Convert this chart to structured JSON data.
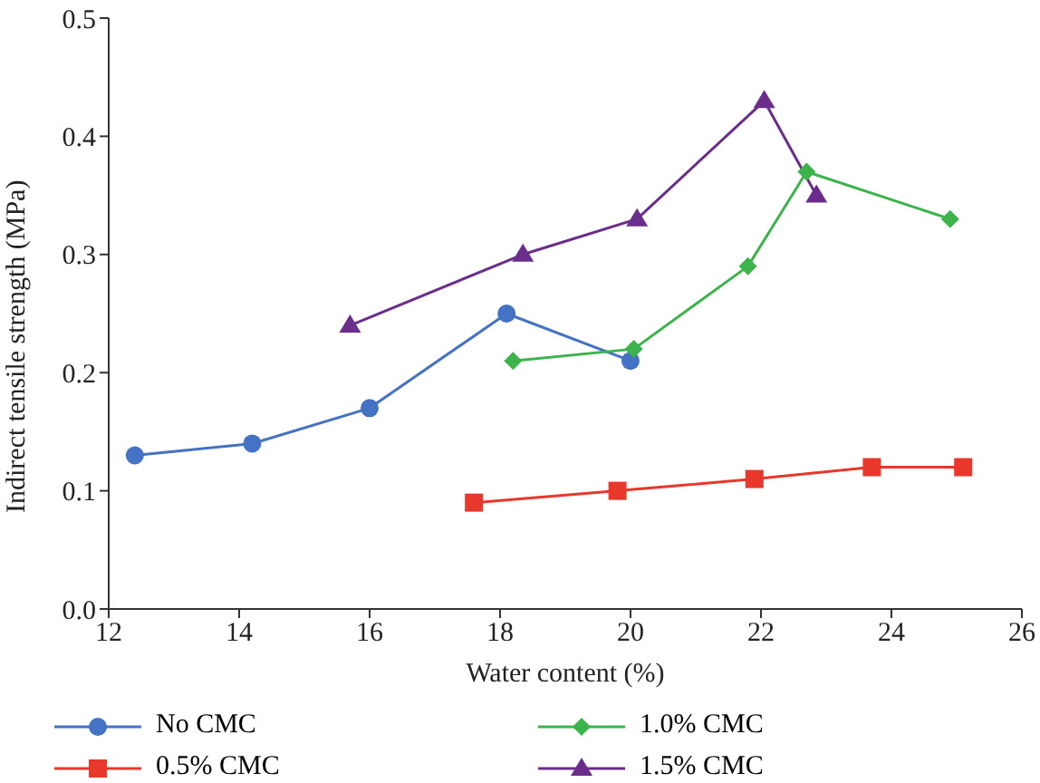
{
  "chart_data": {
    "type": "line",
    "xlabel": "Water content (%)",
    "ylabel": "Indirect tensile strength (MPa)",
    "xlim": [
      12,
      26
    ],
    "xticks": [
      12,
      14,
      16,
      18,
      20,
      22,
      24,
      26
    ],
    "ylim": [
      0,
      0.5
    ],
    "yticks": [
      {
        "value": 0,
        "label": "0.0"
      },
      0.1,
      0.2,
      0.3,
      0.4,
      0.5
    ],
    "grid": false,
    "legend": "bottom",
    "line_style": "solid",
    "series": [
      {
        "name": "No CMC",
        "color": "#4472c4",
        "marker": "circle",
        "x": [
          12.4,
          14.2,
          16.0,
          18.1,
          20.0
        ],
        "values": [
          0.13,
          0.14,
          0.17,
          0.25,
          0.21
        ]
      },
      {
        "name": "0.5% CMC",
        "color": "#e8382c",
        "marker": "square",
        "x": [
          17.6,
          19.8,
          21.9,
          23.7,
          25.1
        ],
        "values": [
          0.09,
          0.1,
          0.11,
          0.12,
          0.12
        ]
      },
      {
        "name": "1.0% CMC",
        "color": "#3cb44b",
        "marker": "diamond",
        "x": [
          18.2,
          20.05,
          21.8,
          22.7,
          24.9
        ],
        "values": [
          0.21,
          0.22,
          0.29,
          0.37,
          0.33
        ]
      },
      {
        "name": "1.5% CMC",
        "color": "#6a2d8c",
        "marker": "triangle",
        "x": [
          15.7,
          18.35,
          20.1,
          22.05,
          22.85
        ],
        "values": [
          0.24,
          0.3,
          0.33,
          0.43,
          0.35
        ]
      }
    ]
  }
}
